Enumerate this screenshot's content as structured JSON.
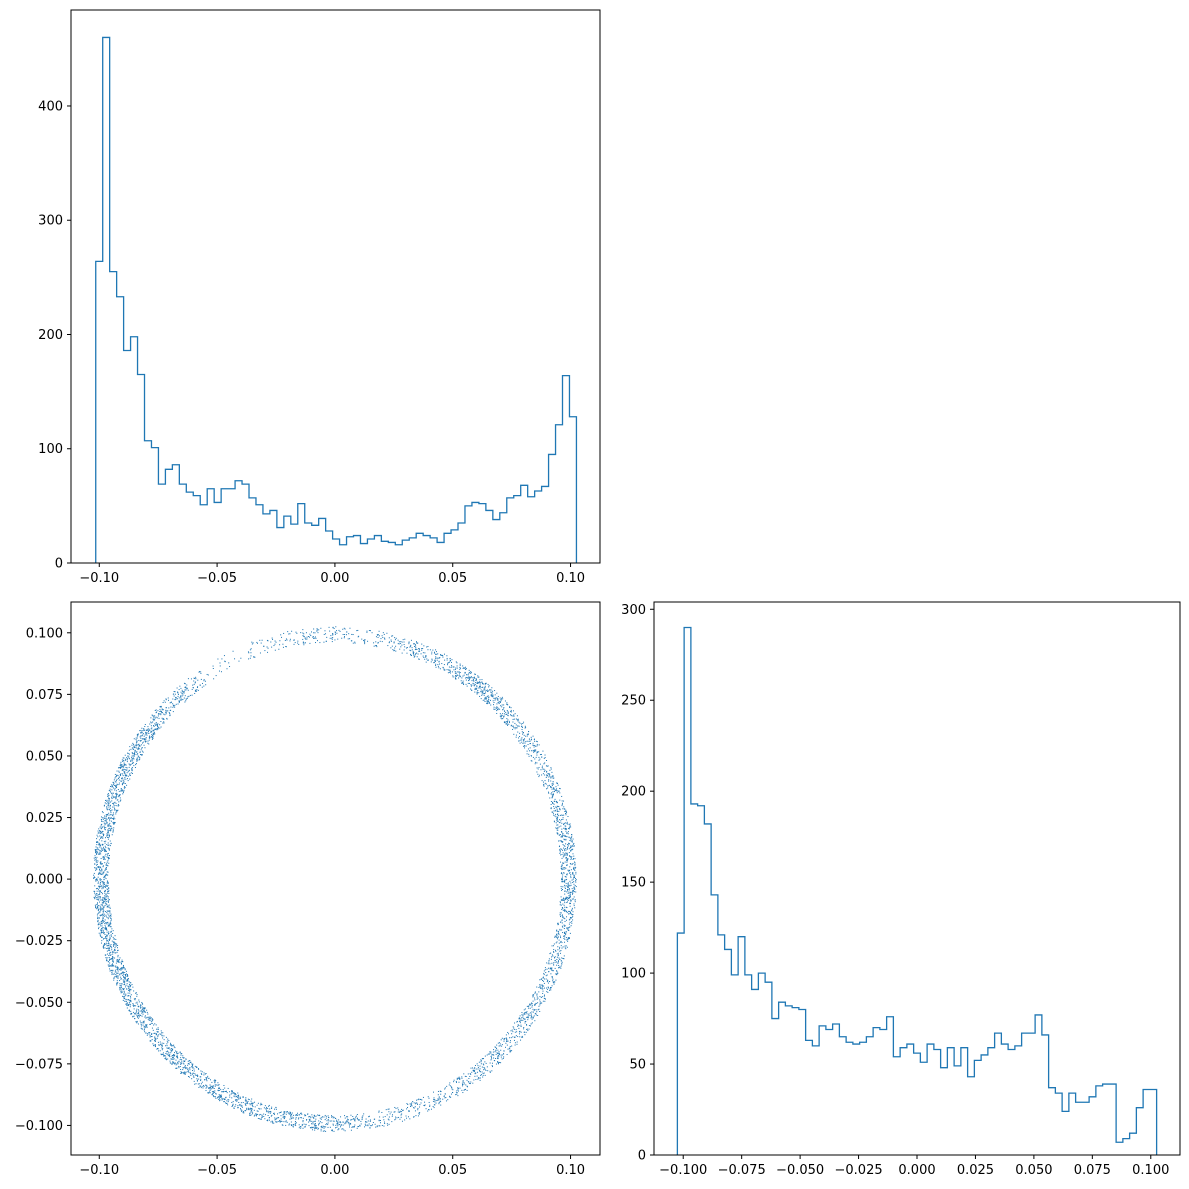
{
  "colors": {
    "series": "#1f77b4",
    "axes": "#000000",
    "background": "#ffffff"
  },
  "chart_data": [
    {
      "id": "hist-x",
      "type": "histogram",
      "title": "",
      "xlabel": "",
      "ylabel": "",
      "xlim": [
        -0.112,
        0.1125
      ],
      "ylim": [
        0,
        484
      ],
      "grid": false,
      "xticks": [
        -0.1,
        -0.05,
        0.0,
        0.05,
        0.1
      ],
      "xtick_labels": [
        "−0.10",
        "−0.05",
        "0.00",
        "0.05",
        "0.10"
      ],
      "yticks": [
        0,
        100,
        200,
        300,
        400
      ],
      "ytick_labels": [
        "0",
        "100",
        "200",
        "300",
        "400"
      ],
      "bin_range": [
        -0.1015,
        0.1025
      ],
      "counts": [
        264,
        460,
        255,
        233,
        186,
        198,
        165,
        107,
        101,
        69,
        82,
        86,
        69,
        62,
        59,
        51,
        65,
        53,
        65,
        65,
        72,
        69,
        57,
        51,
        43,
        46,
        31,
        41,
        34,
        52,
        35,
        33,
        39,
        28,
        21,
        16,
        23,
        24,
        17,
        21,
        24,
        19,
        18,
        16,
        20,
        22,
        26,
        24,
        22,
        18,
        26,
        29,
        35,
        50,
        53,
        52,
        46,
        38,
        44,
        57,
        59,
        68,
        58,
        63,
        67,
        95,
        121,
        164,
        128
      ]
    },
    {
      "id": "scatter-xy",
      "type": "scatter",
      "title": "",
      "xlabel": "",
      "ylabel": "",
      "xlim": [
        -0.112,
        0.1125
      ],
      "ylim": [
        -0.112,
        0.1125
      ],
      "grid": false,
      "xticks": [
        -0.1,
        -0.05,
        0.0,
        0.05,
        0.1
      ],
      "xtick_labels": [
        "−0.10",
        "−0.05",
        "0.00",
        "0.05",
        "0.10"
      ],
      "yticks": [
        -0.1,
        -0.075,
        -0.05,
        -0.025,
        0.0,
        0.025,
        0.05,
        0.075,
        0.1
      ],
      "ytick_labels": [
        "−0.100",
        "−0.075",
        "−0.050",
        "−0.025",
        "0.000",
        "0.025",
        "0.050",
        "0.075",
        "0.100"
      ],
      "ring": {
        "center": [
          0.0,
          0.0
        ],
        "radius_range": [
          0.096,
          0.1025
        ]
      },
      "density_profile": [
        {
          "angle_deg": 0,
          "weight": 1.0
        },
        {
          "angle_deg": 30,
          "weight": 0.45
        },
        {
          "angle_deg": 50,
          "weight": 0.9
        },
        {
          "angle_deg": 75,
          "weight": 0.25
        },
        {
          "angle_deg": 95,
          "weight": 0.35
        },
        {
          "angle_deg": 120,
          "weight": 0.12
        },
        {
          "angle_deg": 145,
          "weight": 1.0
        },
        {
          "angle_deg": 180,
          "weight": 1.0
        },
        {
          "angle_deg": 225,
          "weight": 1.0
        },
        {
          "angle_deg": 260,
          "weight": 0.7
        },
        {
          "angle_deg": 290,
          "weight": 0.45
        },
        {
          "angle_deg": 320,
          "weight": 0.55
        },
        {
          "angle_deg": 345,
          "weight": 0.75
        },
        {
          "angle_deg": 360,
          "weight": 1.0
        }
      ]
    },
    {
      "id": "hist-y",
      "type": "histogram",
      "title": "",
      "xlabel": "",
      "ylabel": "",
      "xlim": [
        -0.1125,
        0.1125
      ],
      "ylim": [
        0,
        304
      ],
      "grid": false,
      "xticks": [
        -0.1,
        -0.075,
        -0.05,
        -0.025,
        0.0,
        0.025,
        0.05,
        0.075,
        0.1
      ],
      "xtick_labels": [
        "−0.100",
        "−0.075",
        "−0.050",
        "−0.025",
        "0.000",
        "0.025",
        "0.050",
        "0.075",
        "0.100"
      ],
      "yticks": [
        0,
        50,
        100,
        150,
        200,
        250,
        300
      ],
      "ytick_labels": [
        "0",
        "50",
        "100",
        "150",
        "200",
        "250",
        "300"
      ],
      "bin_range": [
        -0.1025,
        0.1025
      ],
      "counts": [
        122,
        290,
        193,
        192,
        182,
        143,
        121,
        113,
        99,
        120,
        99,
        91,
        100,
        95,
        75,
        84,
        82,
        81,
        80,
        63,
        60,
        71,
        69,
        72,
        65,
        62,
        61,
        62,
        65,
        70,
        69,
        76,
        54,
        59,
        61,
        56,
        51,
        61,
        58,
        48,
        59,
        49,
        59,
        43,
        52,
        55,
        59,
        67,
        61,
        58,
        60,
        67,
        67,
        77,
        66,
        37,
        34,
        24,
        34,
        29,
        29,
        32,
        38,
        39,
        39,
        7,
        9,
        12,
        26,
        36,
        36
      ]
    }
  ]
}
